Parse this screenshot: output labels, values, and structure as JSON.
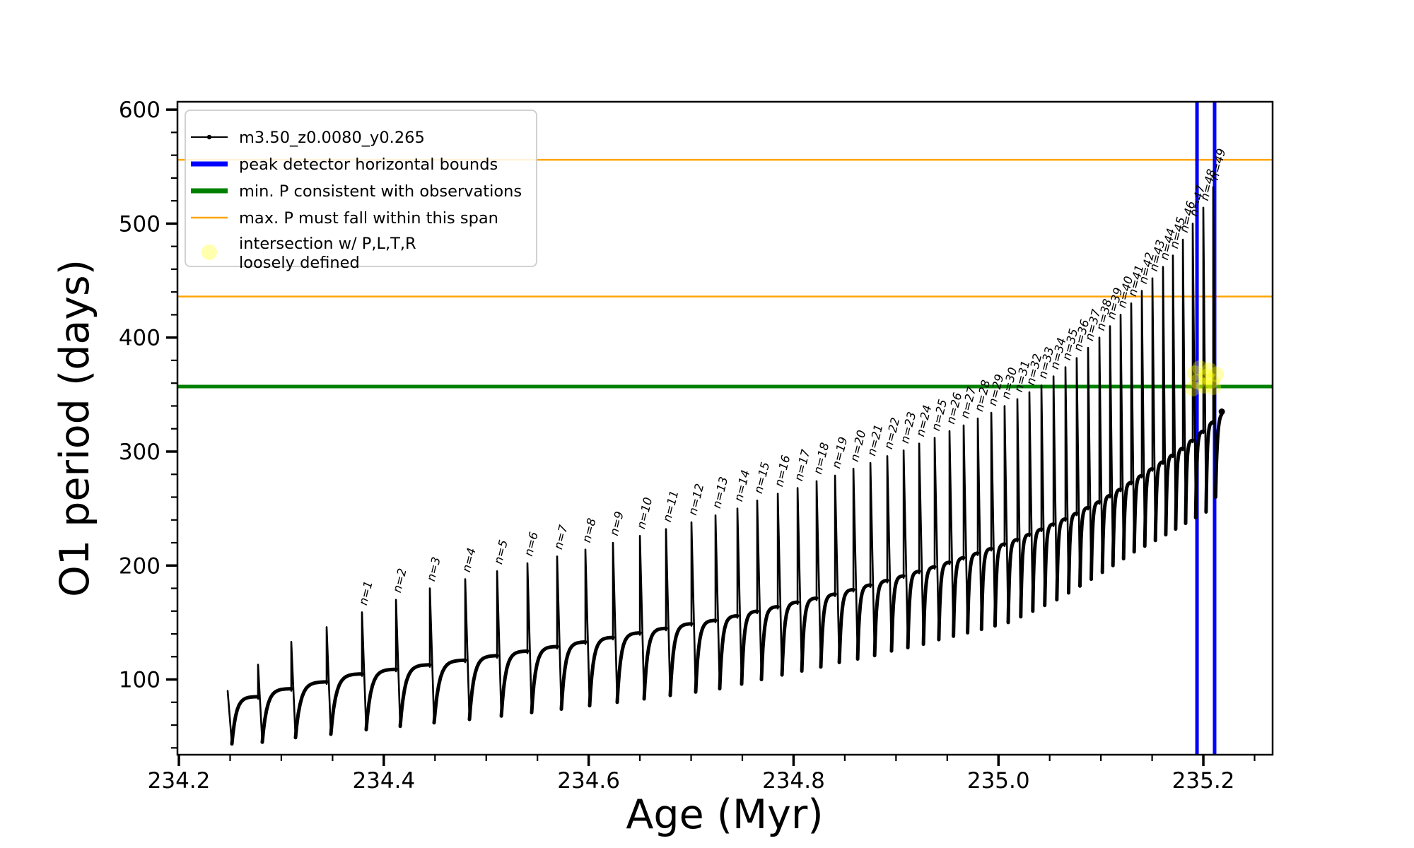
{
  "colors": {
    "series": "#000000",
    "peak_bounds_blue": "#0000ff",
    "min_p_green": "#008000",
    "max_p_orange": "#ffa500",
    "intersection_yellow": "#ffff00",
    "intersection_alpha": 0.32,
    "legend_border": "#cccccc",
    "frame": "#000000"
  },
  "legend": {
    "entries": [
      {
        "label": "m3.50_z0.0080_y0.265",
        "color": "#000000",
        "marker": "line-with-dot"
      },
      {
        "label": "peak detector horizontal bounds",
        "color": "#0000ff",
        "marker": "thick-line"
      },
      {
        "label": "min. P consistent with observations",
        "color": "#008000",
        "marker": "thick-line"
      },
      {
        "label": "max. P must fall within this span",
        "color": "#ffa500",
        "marker": "line"
      },
      {
        "label_line1": "intersection w/ P,L,T,R",
        "label_line2": "loosely defined",
        "color": "#ffff00",
        "marker": "dot"
      }
    ]
  },
  "chart_data": {
    "type": "line",
    "title": "",
    "xlabel": "Age (Myr)",
    "ylabel": "O1 period (days)",
    "xlim": [
      234.1986,
      235.2676
    ],
    "ylim": [
      34,
      606.9
    ],
    "x_ticks": [
      234.2,
      234.4,
      234.6,
      234.8,
      235.0,
      235.2
    ],
    "x_tick_labels": [
      "234.2",
      "234.4",
      "234.6",
      "234.8",
      "235.0",
      "235.2"
    ],
    "x_minor_step": 0.05,
    "y_ticks": [
      100,
      200,
      300,
      400,
      500,
      600
    ],
    "y_tick_labels": [
      "100",
      "200",
      "300",
      "400",
      "500",
      "600"
    ],
    "y_minor_step": 20,
    "grid": false,
    "legend_position": "upper left",
    "series_label": "m3.50_z0.0080_y0.265",
    "hline_min_P": 357,
    "hlines_max_P_span": [
      436,
      556
    ],
    "vlines_peak_detector": [
      235.1938,
      235.211
    ],
    "spike_label_prefix": "n=",
    "first_labeled_spike_index": 4,
    "curve_end": {
      "age": 235.218,
      "period": 335
    },
    "cycles": {
      "comment": "relaxation-oscillation sawtooth: each cycle rises from dip to plateau, spikes to peak, drops to next dip",
      "spike_ages": [
        234.2476,
        234.2773,
        234.3097,
        234.3442,
        234.3787,
        234.4119,
        234.445,
        234.4795,
        234.5106,
        234.5402,
        234.5692,
        234.5968,
        234.6237,
        234.65,
        234.6755,
        234.7003,
        234.7238,
        234.7452,
        234.7645,
        234.7846,
        234.8039,
        234.8225,
        234.8405,
        234.8584,
        234.875,
        234.8915,
        234.9074,
        234.9226,
        234.9377,
        234.9522,
        234.966,
        234.9798,
        234.993,
        235.006,
        235.0185,
        235.0302,
        235.0419,
        235.0537,
        235.0654,
        235.0764,
        235.0875,
        235.0985,
        235.1089,
        235.1192,
        235.1296,
        235.1399,
        235.1503,
        235.1606,
        235.1703,
        235.18,
        235.1896,
        235.2,
        235.2096
      ],
      "peaks": [
        90,
        113,
        133,
        146,
        159,
        170,
        180,
        188,
        195,
        202,
        208,
        214,
        220,
        226,
        232,
        238,
        244,
        250,
        257,
        263,
        268,
        274,
        279,
        285,
        290,
        296,
        301,
        307,
        312,
        318,
        323,
        329,
        334,
        340,
        346,
        352,
        358,
        366,
        374,
        382,
        391,
        400,
        410,
        420,
        430,
        441,
        452,
        462,
        472,
        486,
        500,
        514,
        532
      ],
      "plateaus": [
        75,
        85,
        92,
        98,
        105,
        109,
        113,
        117,
        121,
        125,
        129,
        133,
        137,
        141,
        145,
        149,
        152,
        156,
        160,
        164,
        168,
        171.5,
        175,
        179,
        183,
        187,
        191,
        195,
        199,
        203,
        207,
        211,
        215,
        219,
        223,
        227.5,
        232,
        236.5,
        241,
        246,
        251,
        256,
        261.5,
        267,
        273,
        279,
        285,
        291,
        297,
        303,
        310,
        318,
        326
      ],
      "dips": [
        43.5,
        45,
        49,
        52,
        56,
        59,
        62,
        65,
        68,
        71,
        74,
        77,
        80,
        83,
        86,
        89,
        92,
        96,
        100,
        104,
        107.5,
        111,
        115,
        118,
        121,
        125,
        128,
        131,
        135,
        138,
        141,
        144,
        147,
        150,
        155,
        160,
        165,
        170,
        176,
        182,
        188,
        194,
        200,
        206,
        212,
        217,
        222,
        227,
        232,
        237,
        242,
        247,
        260
      ]
    },
    "intersection_points": [
      [
        235.1897,
        355.2
      ],
      [
        235.1945,
        361.4
      ],
      [
        235.1917,
        368.8
      ],
      [
        235.1966,
        373.2
      ],
      [
        235.2007,
        357.7
      ],
      [
        235.2028,
        365.7
      ],
      [
        235.2062,
        371.3
      ],
      [
        235.2097,
        356.4
      ],
      [
        235.2076,
        362.0
      ],
      [
        235.2125,
        367.6
      ]
    ]
  }
}
